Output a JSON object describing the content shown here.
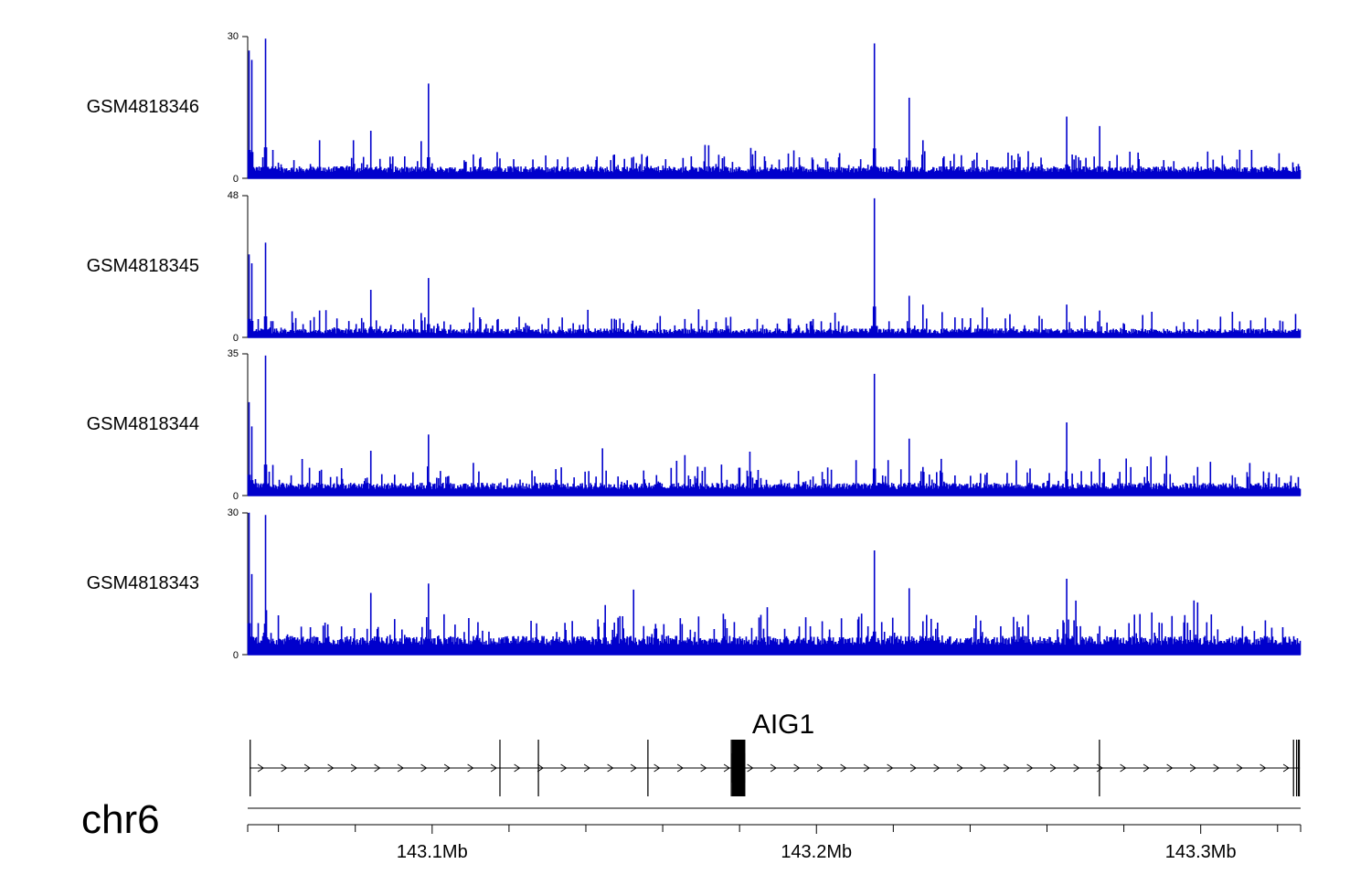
{
  "chart_data": {
    "type": "area",
    "title": "",
    "chromosome": "chr6",
    "region": {
      "start": 143052000,
      "end": 143326000
    },
    "x_ticks": [
      {
        "pos": 143100000,
        "label": "143.1Mb"
      },
      {
        "pos": 143200000,
        "label": "143.2Mb"
      },
      {
        "pos": 143300000,
        "label": "143.3Mb"
      }
    ],
    "x_minor_ticks": [
      143060000,
      143080000,
      143120000,
      143140000,
      143160000,
      143180000,
      143220000,
      143240000,
      143260000,
      143280000,
      143320000
    ],
    "color": "#0000cc",
    "tracks": [
      {
        "name": "GSM4818346",
        "ymax": 30,
        "ymin_label": "0",
        "ymax_label": "30",
        "baseline": 1.2,
        "noise": 1.6,
        "peaks": [
          [
            143052300,
            27
          ],
          [
            143053000,
            25
          ],
          [
            143056500,
            29.5
          ],
          [
            143070500,
            8
          ],
          [
            143079500,
            8
          ],
          [
            143084000,
            10
          ],
          [
            143099000,
            20
          ],
          [
            143110500,
            5
          ],
          [
            143171000,
            7
          ],
          [
            143215000,
            28.5
          ],
          [
            143224000,
            17
          ],
          [
            143227500,
            8
          ],
          [
            143265000,
            13
          ],
          [
            143273500,
            11
          ],
          [
            143310000,
            6
          ]
        ]
      },
      {
        "name": "GSM4818345",
        "ymax": 48,
        "ymin_label": "0",
        "ymax_label": "48",
        "baseline": 1.2,
        "noise": 2.2,
        "peaks": [
          [
            143052300,
            28
          ],
          [
            143053000,
            25
          ],
          [
            143056500,
            32
          ],
          [
            143070500,
            9
          ],
          [
            143084000,
            16
          ],
          [
            143099000,
            20
          ],
          [
            143110500,
            10
          ],
          [
            143215000,
            47
          ],
          [
            143224000,
            14
          ],
          [
            143227500,
            11
          ],
          [
            143243000,
            10
          ],
          [
            143265000,
            11
          ],
          [
            143273500,
            9
          ],
          [
            143299000,
            6
          ]
        ]
      },
      {
        "name": "GSM4818344",
        "ymax": 35,
        "ymin_label": "0",
        "ymax_label": "35",
        "baseline": 1.5,
        "noise": 2.0,
        "peaks": [
          [
            143052300,
            23
          ],
          [
            143053000,
            17
          ],
          [
            143056500,
            34.5
          ],
          [
            143070500,
            6
          ],
          [
            143084000,
            11
          ],
          [
            143099000,
            15
          ],
          [
            143110500,
            8
          ],
          [
            143171000,
            7
          ],
          [
            143215000,
            30
          ],
          [
            143224000,
            14
          ],
          [
            143227500,
            7
          ],
          [
            143265000,
            18
          ],
          [
            143273500,
            9
          ],
          [
            143299000,
            7
          ]
        ]
      },
      {
        "name": "GSM4818343",
        "ymax": 30,
        "ymin_label": "0",
        "ymax_label": "30",
        "baseline": 2.0,
        "noise": 2.4,
        "peaks": [
          [
            143052300,
            30
          ],
          [
            143053000,
            17
          ],
          [
            143056500,
            29.5
          ],
          [
            143084000,
            13
          ],
          [
            143099000,
            15
          ],
          [
            143113000,
            5
          ],
          [
            143155000,
            6
          ],
          [
            143215000,
            22
          ],
          [
            143224000,
            14
          ],
          [
            143227500,
            7
          ],
          [
            143265000,
            16
          ],
          [
            143273500,
            6
          ],
          [
            143299000,
            11
          ]
        ]
      }
    ],
    "gene": {
      "name": "AIG1",
      "start": 143052500,
      "end": 143325800,
      "strand": "+",
      "exons": [
        [
          143052500,
          143052800
        ],
        [
          143117500,
          143117700
        ],
        [
          143127500,
          143127800
        ],
        [
          143156000,
          143156300
        ],
        [
          143177700,
          143178000
        ],
        [
          143178000,
          143181500
        ],
        [
          143273500,
          143273800
        ],
        [
          143324000,
          143324300
        ],
        [
          143324800,
          143325100
        ],
        [
          143325300,
          143325800
        ]
      ],
      "thick": [
        143178000,
        143181500
      ]
    }
  }
}
